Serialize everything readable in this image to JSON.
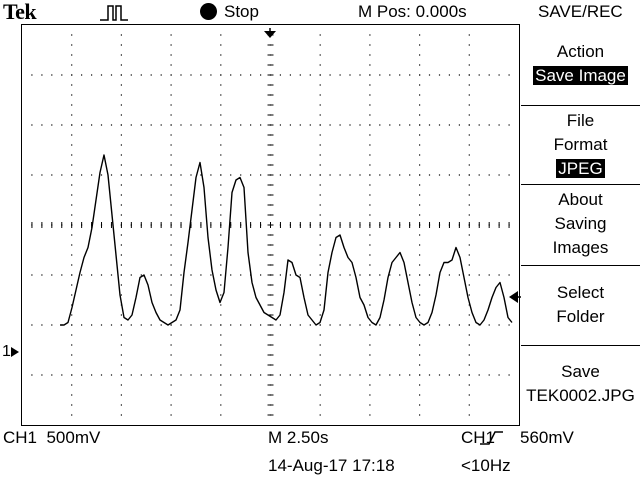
{
  "header": {
    "brand": "Tek",
    "run_state": "Stop",
    "horizontal_position": "M Pos: 0.000s"
  },
  "menu": {
    "title": "SAVE/REC",
    "action": {
      "label_lines": [
        "Action"
      ],
      "value": "Save Image"
    },
    "file_format": {
      "label_lines": [
        "File",
        "Format"
      ],
      "value": "JPEG"
    },
    "about_saving_images": {
      "label_lines": [
        "About",
        "Saving",
        "Images"
      ]
    },
    "select_folder": {
      "label_lines": [
        "Select",
        "Folder"
      ]
    },
    "save": {
      "label_lines": [
        "Save",
        "TEK0002.JPG"
      ]
    }
  },
  "channel": {
    "ground_marker": "1"
  },
  "footer": {
    "ch1_scale": "CH1  500mV",
    "time_scale": "M 2.50s",
    "trigger_source": "CH1",
    "trigger_level": "560mV",
    "timestamp": "14-Aug-17 17:18",
    "frequency": "<10Hz"
  },
  "colors": {
    "background": "#ffffff",
    "trace": "#000000",
    "grid": "#000000"
  },
  "icons": {
    "trigger_pulse": "pulse-icon",
    "run_state": "stop-dot-icon",
    "trigger_position": "trigger-position-arrow-icon",
    "trigger_level": "trigger-level-arrow-icon",
    "trigger_slope": "rising-edge-icon"
  },
  "waveform": {
    "channel": "CH1",
    "samples": [
      0.0,
      0.0,
      0.05,
      0.35,
      0.7,
      1.05,
      1.35,
      1.55,
      1.95,
      2.5,
      3.05,
      3.4,
      3.0,
      2.2,
      1.4,
      0.6,
      0.15,
      0.1,
      0.2,
      0.55,
      0.95,
      1.0,
      0.8,
      0.45,
      0.25,
      0.1,
      0.05,
      0.0,
      0.05,
      0.1,
      0.3,
      1.05,
      1.65,
      2.3,
      2.95,
      3.25,
      2.75,
      1.75,
      1.1,
      0.7,
      0.45,
      0.65,
      1.55,
      2.65,
      2.9,
      2.95,
      2.75,
      1.45,
      0.85,
      0.55,
      0.4,
      0.25,
      0.2,
      0.15,
      0.1,
      0.2,
      0.65,
      1.3,
      1.25,
      1.0,
      0.95,
      0.55,
      0.2,
      0.1,
      0.0,
      0.05,
      0.3,
      1.05,
      1.45,
      1.75,
      1.8,
      1.55,
      1.35,
      1.25,
      0.95,
      0.55,
      0.4,
      0.15,
      0.05,
      0.0,
      0.15,
      0.5,
      0.95,
      1.25,
      1.35,
      1.45,
      1.25,
      0.85,
      0.45,
      0.15,
      0.05,
      0.0,
      0.05,
      0.25,
      0.6,
      1.05,
      1.25,
      1.25,
      1.3,
      1.55,
      1.35,
      0.95,
      0.55,
      0.25,
      0.05,
      0.0,
      0.1,
      0.3,
      0.55,
      0.75,
      0.85,
      0.55,
      0.15,
      0.05
    ]
  }
}
